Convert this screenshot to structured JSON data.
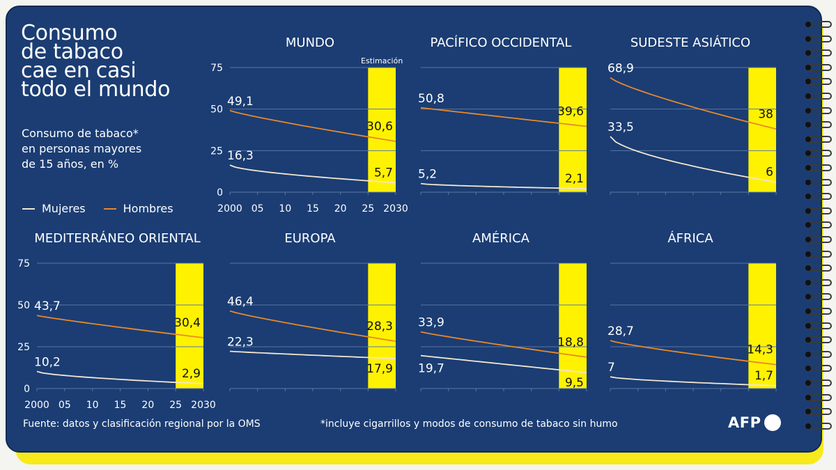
{
  "title": "Consumo\nde tabaco\ncae en casi\ntodo el mundo",
  "subtitle": "Consumo de tabaco*\nen personas mayores\nde 15 años, en %",
  "legend": {
    "women": "Mujeres",
    "men": "Hombres"
  },
  "source": "Fuente: datos y clasificación regional por la OMS",
  "note": "*incluye cigarrillos y modos de consumo de tabaco sin humo",
  "logo": "AFP",
  "colors": {
    "background": "#1b3d73",
    "estimate_band": "#fff200",
    "women_line": "#f3e6cf",
    "men_line": "#e8882a",
    "gridline": "#5a76a3",
    "text": "#ffffff"
  },
  "chart_data": [
    {
      "type": "line",
      "title": "MUNDO",
      "x": [
        2000,
        2030
      ],
      "xticks": [
        "2000",
        "05",
        "10",
        "15",
        "20",
        "25",
        "2030"
      ],
      "ylim": [
        0,
        75
      ],
      "yticks": [
        "0",
        "25",
        "50",
        "75"
      ],
      "estimate_band": {
        "from": 2025,
        "to": 2030,
        "label": "Estimación"
      },
      "series": [
        {
          "name": "Hombres",
          "values": [
            49.1,
            30.6
          ],
          "labels": [
            "49,1",
            "30,6"
          ]
        },
        {
          "name": "Mujeres",
          "values": [
            16.3,
            5.7
          ],
          "labels": [
            "16,3",
            "5,7"
          ]
        }
      ]
    },
    {
      "type": "line",
      "title": "PACÍFICO OCCIDENTAL",
      "x": [
        2000,
        2030
      ],
      "ylim": [
        0,
        75
      ],
      "estimate_band": {
        "from": 2025,
        "to": 2030
      },
      "series": [
        {
          "name": "Hombres",
          "values": [
            50.8,
            39.6
          ],
          "labels": [
            "50,8",
            "39,6"
          ]
        },
        {
          "name": "Mujeres",
          "values": [
            5.2,
            2.1
          ],
          "labels": [
            "5,2",
            "2,1"
          ]
        }
      ]
    },
    {
      "type": "line",
      "title": "SUDESTE ASIÁTICO",
      "x": [
        2000,
        2030
      ],
      "ylim": [
        0,
        75
      ],
      "estimate_band": {
        "from": 2025,
        "to": 2030
      },
      "series": [
        {
          "name": "Hombres",
          "values": [
            68.9,
            38
          ],
          "labels": [
            "68,9",
            "38"
          ]
        },
        {
          "name": "Mujeres",
          "values": [
            33.5,
            6
          ],
          "labels": [
            "33,5",
            "6"
          ]
        }
      ]
    },
    {
      "type": "line",
      "title": "MEDITERRÁNEO ORIENTAL",
      "x": [
        2000,
        2030
      ],
      "xticks": [
        "2000",
        "05",
        "10",
        "15",
        "20",
        "25",
        "2030"
      ],
      "ylim": [
        0,
        75
      ],
      "yticks": [
        "0",
        "25",
        "50",
        "75"
      ],
      "estimate_band": {
        "from": 2025,
        "to": 2030
      },
      "series": [
        {
          "name": "Hombres",
          "values": [
            43.7,
            30.4
          ],
          "labels": [
            "43,7",
            "30,4"
          ]
        },
        {
          "name": "Mujeres",
          "values": [
            10.2,
            2.9
          ],
          "labels": [
            "10,2",
            "2,9"
          ]
        }
      ]
    },
    {
      "type": "line",
      "title": "EUROPA",
      "x": [
        2000,
        2030
      ],
      "ylim": [
        0,
        75
      ],
      "estimate_band": {
        "from": 2025,
        "to": 2030
      },
      "series": [
        {
          "name": "Hombres",
          "values": [
            46.4,
            28.3
          ],
          "labels": [
            "46,4",
            "28,3"
          ]
        },
        {
          "name": "Mujeres",
          "values": [
            22.3,
            17.9
          ],
          "labels": [
            "22,3",
            "17,9"
          ]
        }
      ]
    },
    {
      "type": "line",
      "title": "AMÉRICA",
      "x": [
        2000,
        2030
      ],
      "ylim": [
        0,
        75
      ],
      "estimate_band": {
        "from": 2025,
        "to": 2030
      },
      "series": [
        {
          "name": "Hombres",
          "values": [
            33.9,
            18.8
          ],
          "labels": [
            "33,9",
            "18,8"
          ]
        },
        {
          "name": "Mujeres",
          "values": [
            19.7,
            9.5
          ],
          "labels": [
            "19,7",
            "9,5"
          ]
        }
      ]
    },
    {
      "type": "line",
      "title": "ÁFRICA",
      "x": [
        2000,
        2030
      ],
      "ylim": [
        0,
        75
      ],
      "estimate_band": {
        "from": 2025,
        "to": 2030
      },
      "series": [
        {
          "name": "Hombres",
          "values": [
            28.7,
            14.3
          ],
          "labels": [
            "28,7",
            "14,3"
          ]
        },
        {
          "name": "Mujeres",
          "values": [
            7,
            1.7
          ],
          "labels": [
            "7",
            "1,7"
          ]
        }
      ]
    }
  ]
}
